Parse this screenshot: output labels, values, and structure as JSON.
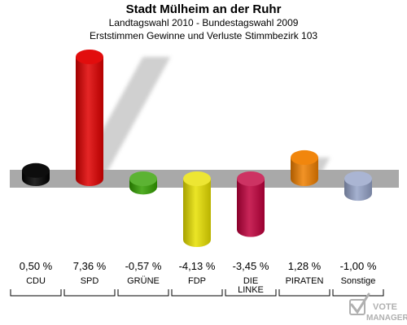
{
  "chart_data": {
    "type": "bar",
    "title": "Stadt Mülheim an der Ruhr",
    "subtitle_lines": [
      "Landtagswahl 2010 - Bundestagswahl 2009",
      "Erststimmen Gewinne und Verluste Stimmbezirk 103"
    ],
    "categories": [
      "CDU",
      "SPD",
      "GRÜNE",
      "FDP",
      "DIE LINKE",
      "PIRATEN",
      "Sonstige"
    ],
    "values": [
      0.5,
      7.36,
      -0.57,
      -4.13,
      -3.45,
      1.28,
      -1.0
    ],
    "value_labels": [
      "0,50 %",
      "7,36 %",
      "-0,57 %",
      "-4,13 %",
      "-3,45 %",
      "1,28 %",
      "-1,00 %"
    ],
    "colors": [
      "#000000",
      "#e00000",
      "#33a000",
      "#e8e000",
      "#c0003c",
      "#f08000",
      "#95a3c8"
    ],
    "ylim": [
      -4.13,
      7.36
    ],
    "grid": false,
    "legend": "none"
  },
  "watermark": {
    "line1": "VOTE",
    "line2": "MANAGER"
  }
}
